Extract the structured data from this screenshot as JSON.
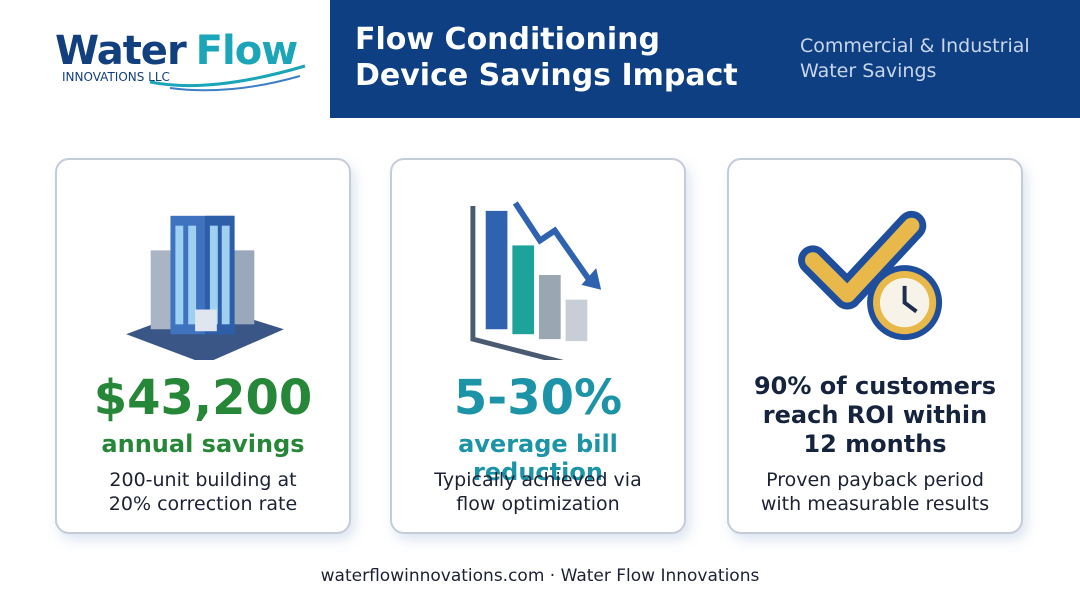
{
  "header": {
    "logo": {
      "word1": "Water",
      "word2": "Flow",
      "tagline": "INNOVATIONS LLC"
    },
    "title": [
      "Flow Conditioning",
      "Device Savings Impact"
    ],
    "subtitle": [
      "Commercial & Industrial",
      "Water Savings"
    ]
  },
  "cards": [
    {
      "stat": [
        "$43,200"
      ],
      "label": "annual savings",
      "description": [
        "200-unit building at",
        "20% correction rate"
      ]
    },
    {
      "stat": [
        "5-30%"
      ],
      "label": "average bill reduction",
      "description": [
        "Typically achieved via",
        "flow optimization"
      ]
    },
    {
      "stat": [
        "90% of customers",
        "reach ROI within",
        "12 months"
      ],
      "description": [
        "Proven payback period",
        "with measurable results"
      ]
    }
  ],
  "footer": "waterflowinnovations.com · Water Flow Innovations"
}
